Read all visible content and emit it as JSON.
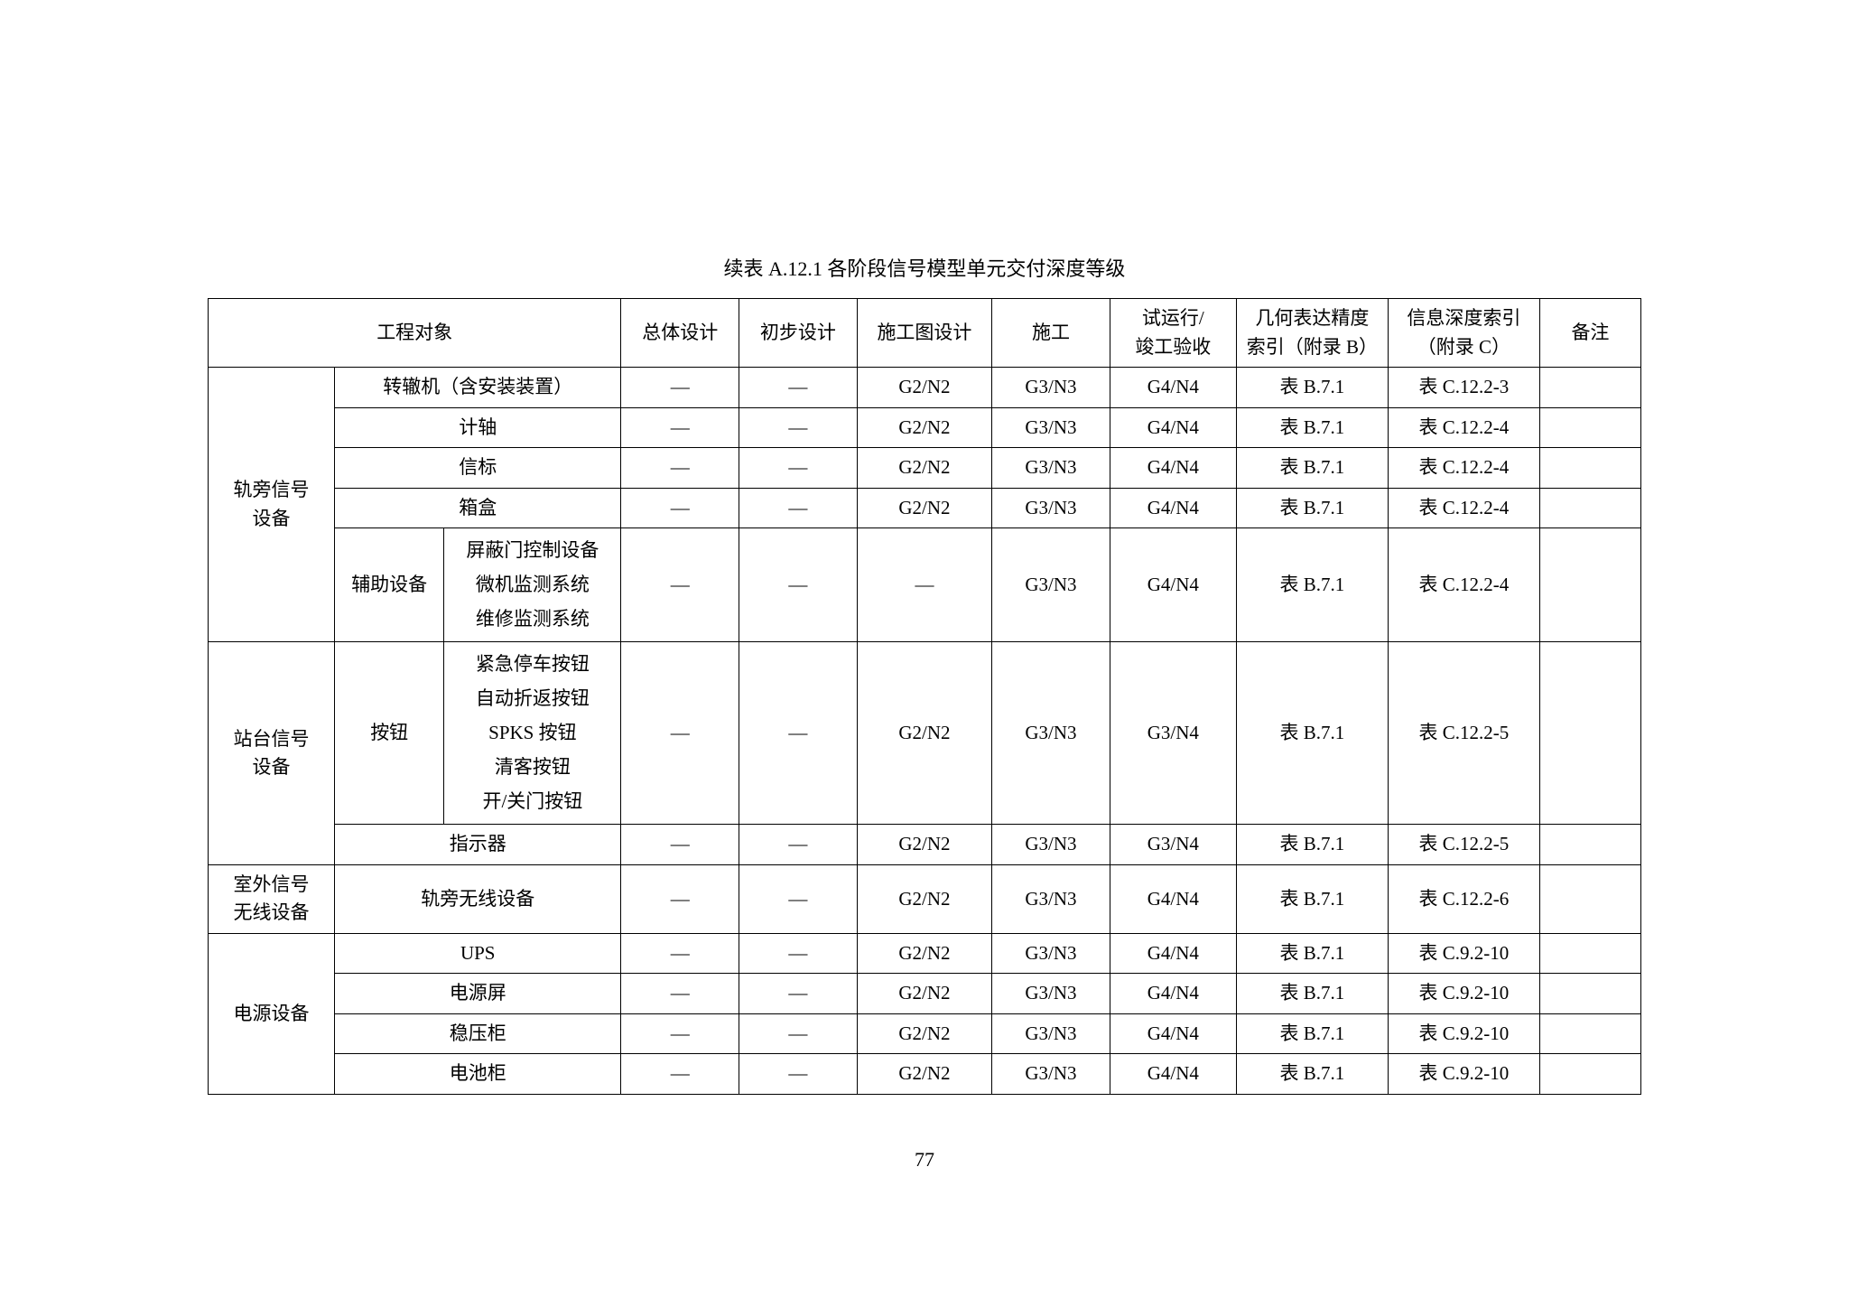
{
  "title": "续表 A.12.1   各阶段信号模型单元交付深度等级",
  "pageNumber": "77",
  "headers": {
    "engObject": "工程对象",
    "overallDesign": "总体设计",
    "prelimDesign": "初步设计",
    "constDrawing": "施工图设计",
    "construction": "施工",
    "trialLine1": "试运行/",
    "trialLine2": "竣工验收",
    "geomLine1": "几何表达精度",
    "geomLine2": "索引（附录 B）",
    "infoLine1": "信息深度索引",
    "infoLine2": "（附录 C）",
    "remarks": "备注"
  },
  "dash": "—",
  "groups": {
    "trackside": "轨旁信号设备",
    "platform": "站台信号设备",
    "outdoor": "室外信号无线设备",
    "power": "电源设备"
  },
  "rows": {
    "r1": {
      "obj": "转辙机（含安装装置）",
      "c1": "—",
      "c2": "—",
      "c3": "G2/N2",
      "c4": "G3/N3",
      "c5": "G4/N4",
      "c6": "表 B.7.1",
      "c7": "表 C.12.2-3",
      "c8": ""
    },
    "r2": {
      "obj": "计轴",
      "c1": "—",
      "c2": "—",
      "c3": "G2/N2",
      "c4": "G3/N3",
      "c5": "G4/N4",
      "c6": "表 B.7.1",
      "c7": "表 C.12.2-4",
      "c8": ""
    },
    "r3": {
      "obj": "信标",
      "c1": "—",
      "c2": "—",
      "c3": "G2/N2",
      "c4": "G3/N3",
      "c5": "G4/N4",
      "c6": "表 B.7.1",
      "c7": "表 C.12.2-4",
      "c8": ""
    },
    "r4": {
      "obj": "箱盒",
      "c1": "—",
      "c2": "—",
      "c3": "G2/N2",
      "c4": "G3/N3",
      "c5": "G4/N4",
      "c6": "表 B.7.1",
      "c7": "表 C.12.2-4",
      "c8": ""
    },
    "r5": {
      "obj2": "辅助设备",
      "obj3a": "屏蔽门控制设备",
      "obj3b": "微机监测系统",
      "obj3c": "维修监测系统",
      "c1": "—",
      "c2": "—",
      "c3": "—",
      "c4": "G3/N3",
      "c5": "G4/N4",
      "c6": "表 B.7.1",
      "c7": "表 C.12.2-4",
      "c8": ""
    },
    "r6": {
      "obj2": "按钮",
      "obj3a": "紧急停车按钮",
      "obj3b": "自动折返按钮",
      "obj3c": "SPKS 按钮",
      "obj3d": "清客按钮",
      "obj3e": "开/关门按钮",
      "c1": "—",
      "c2": "—",
      "c3": "G2/N2",
      "c4": "G3/N3",
      "c5": "G3/N4",
      "c6": "表 B.7.1",
      "c7": "表 C.12.2-5",
      "c8": ""
    },
    "r7": {
      "obj": "指示器",
      "c1": "—",
      "c2": "—",
      "c3": "G2/N2",
      "c4": "G3/N3",
      "c5": "G3/N4",
      "c6": "表 B.7.1",
      "c7": "表 C.12.2-5",
      "c8": ""
    },
    "r8": {
      "obj": "轨旁无线设备",
      "c1": "—",
      "c2": "—",
      "c3": "G2/N2",
      "c4": "G3/N3",
      "c5": "G4/N4",
      "c6": "表 B.7.1",
      "c7": "表 C.12.2-6",
      "c8": ""
    },
    "r9": {
      "obj": "UPS",
      "c1": "—",
      "c2": "—",
      "c3": "G2/N2",
      "c4": "G3/N3",
      "c5": "G4/N4",
      "c6": "表 B.7.1",
      "c7": "表 C.9.2-10",
      "c8": ""
    },
    "r10": {
      "obj": "电源屏",
      "c1": "—",
      "c2": "—",
      "c3": "G2/N2",
      "c4": "G3/N3",
      "c5": "G4/N4",
      "c6": "表 B.7.1",
      "c7": "表 C.9.2-10",
      "c8": ""
    },
    "r11": {
      "obj": "稳压柜",
      "c1": "—",
      "c2": "—",
      "c3": "G2/N2",
      "c4": "G3/N3",
      "c5": "G4/N4",
      "c6": "表 B.7.1",
      "c7": "表 C.9.2-10",
      "c8": ""
    },
    "r12": {
      "obj": "电池柜",
      "c1": "—",
      "c2": "—",
      "c3": "G2/N2",
      "c4": "G3/N3",
      "c5": "G4/N4",
      "c6": "表 B.7.1",
      "c7": "表 C.9.2-10",
      "c8": ""
    }
  },
  "styling": {
    "bodyBackground": "#ffffff",
    "borderColor": "#000000",
    "fontSize": 21,
    "titleFontSize": 22,
    "fontFamily": "SimSun",
    "textColor": "#000000",
    "pageWidth": 2048,
    "pageHeight": 1447,
    "borderWidth": 1.5
  }
}
